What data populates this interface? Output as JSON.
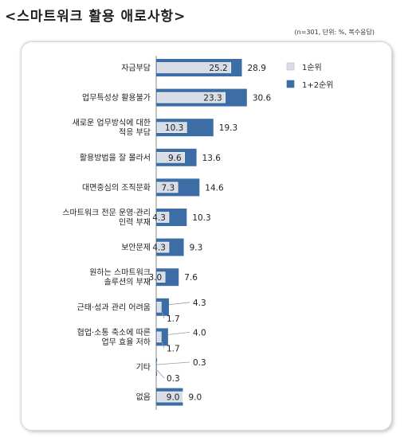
{
  "title": "<스마트워크 활용 애로사항>",
  "note": "(n=301, 단위: %, 복수응답)",
  "chart_data": {
    "type": "bar",
    "orientation": "horizontal",
    "categories": [
      [
        "자금부담"
      ],
      [
        "업무특성상 활용불가"
      ],
      [
        "새로운 업무방식에 대한",
        "적응 부담"
      ],
      [
        "활용방법을 잘 몰라서"
      ],
      [
        "대면중심의 조직문화"
      ],
      [
        "스마트워크 전문 운영·관리",
        "인력 부재"
      ],
      [
        "보안문제"
      ],
      [
        "원하는 스마트워크",
        "솔루션의 부재"
      ],
      [
        "근태·성과 관리 어려움"
      ],
      [
        "협업·소통 축소에 따른",
        "업무 효율 저하"
      ],
      [
        "기타"
      ],
      [
        "없음"
      ]
    ],
    "series": [
      {
        "name": "1순위",
        "values": [
          25.2,
          23.3,
          10.3,
          9.6,
          7.3,
          4.3,
          4.3,
          3.0,
          1.7,
          1.7,
          0.3,
          9.0
        ],
        "color": "#d9dde6"
      },
      {
        "name": "1+2순위",
        "values": [
          28.9,
          30.6,
          19.3,
          13.6,
          14.6,
          10.3,
          9.3,
          7.6,
          4.3,
          4.0,
          0.3,
          9.0
        ],
        "color": "#3c6ea5"
      }
    ],
    "legend_position": "top-right",
    "grid": false,
    "xlim": [
      0,
      35
    ]
  }
}
